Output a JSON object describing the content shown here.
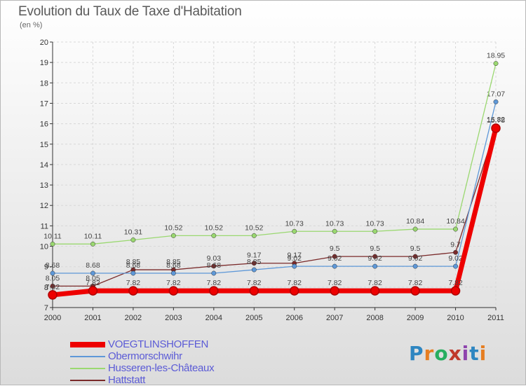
{
  "title": "Evolution du Taux de Taxe d'Habitation",
  "subtitle": "(en %)",
  "logo": [
    "P",
    "r",
    "o",
    "x",
    "i",
    "t",
    "i"
  ],
  "logo_colors": [
    "#2e86c1",
    "#e67e22",
    "#27ae60",
    "#c0392b",
    "#8e44ad",
    "#2e86c1",
    "#e67e22"
  ],
  "chart_data": {
    "type": "line",
    "title": "Evolution du Taux de Taxe d'Habitation",
    "ylabel": "(en %)",
    "xlabel": "",
    "ylim": [
      7,
      20
    ],
    "yticks": [
      7,
      8,
      9,
      10,
      11,
      12,
      13,
      14,
      15,
      16,
      17,
      18,
      19,
      20
    ],
    "grid": true,
    "x": [
      "2000",
      "2001",
      "2002",
      "2003",
      "2004",
      "2005",
      "2006",
      "2007",
      "2008",
      "2009",
      "2010",
      "2011"
    ],
    "series": [
      {
        "name": "Hattstatt",
        "color": "#7a2a2a",
        "values": [
          8.05,
          8.05,
          8.85,
          8.85,
          9.03,
          9.17,
          9.17,
          9.5,
          9.5,
          9.5,
          9.7,
          15.82
        ],
        "labels": [
          "8.05",
          "8.05",
          "8.85",
          "8.85",
          "9.03",
          "9.17",
          "9.17",
          "9.5",
          "9.5",
          "9.5",
          "9.7",
          "15.82"
        ]
      },
      {
        "name": "Obermorschwihr",
        "color": "#5e98d8",
        "values": [
          8.68,
          8.68,
          8.68,
          8.68,
          8.68,
          8.85,
          9.02,
          9.02,
          9.02,
          9.02,
          9.02,
          17.07
        ],
        "labels": [
          "8.68",
          "8.68",
          "8.68",
          "8.68",
          "8.68",
          "8.85",
          "9.02",
          "9.02",
          "9.02",
          "9.02",
          "9.02",
          "17.07"
        ]
      },
      {
        "name": "Husseren-les-Châteaux",
        "color": "#9ad870",
        "values": [
          10.11,
          10.11,
          10.31,
          10.52,
          10.52,
          10.52,
          10.73,
          10.73,
          10.73,
          10.84,
          10.84,
          18.95
        ],
        "labels": [
          "10.11",
          "10.11",
          "10.31",
          "10.52",
          "10.52",
          "10.52",
          "10.73",
          "10.73",
          "10.73",
          "10.84",
          "10.84",
          "18.95"
        ]
      },
      {
        "name": "VOEGTLINSHOFFEN",
        "color": "#ee0000",
        "values": [
          7.62,
          7.82,
          7.82,
          7.82,
          7.82,
          7.82,
          7.82,
          7.82,
          7.82,
          7.82,
          7.82,
          15.78
        ],
        "labels": [
          "7.62",
          "7.82",
          "7.82",
          "7.82",
          "7.82",
          "7.82",
          "7.82",
          "7.82",
          "7.82",
          "7.82",
          "7.82",
          "15.78"
        ]
      }
    ],
    "legend": [
      "VOEGTLINSHOFFEN",
      "Obermorschwihr",
      "Husseren-les-Châteaux",
      "Hattstatt"
    ]
  }
}
